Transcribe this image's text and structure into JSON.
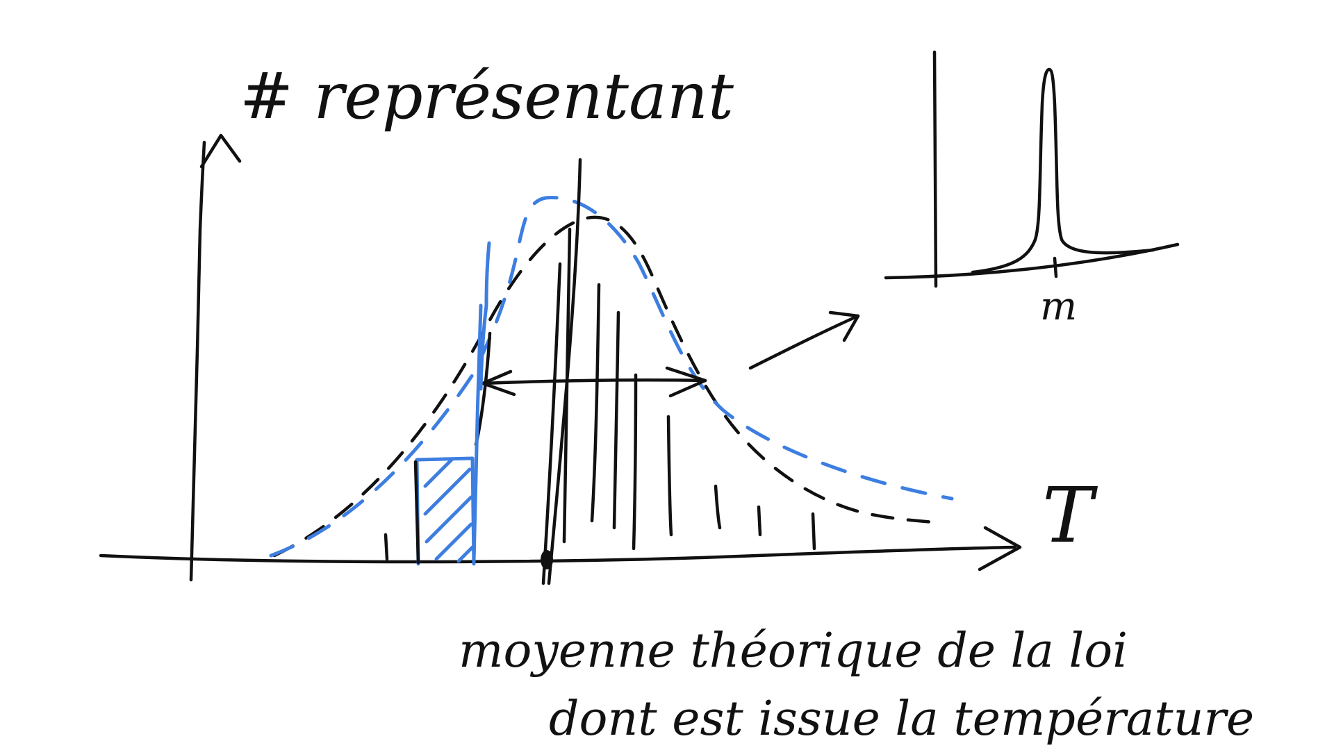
{
  "labels": {
    "y_axis": "# représentant",
    "x_axis": "T",
    "inset_tick": "m",
    "annotation_line1": "moyenne théorique de la loi",
    "annotation_line2": "dont est issue la température"
  },
  "colors": {
    "ink": "#111111",
    "highlight": "#3d7ee0"
  }
}
